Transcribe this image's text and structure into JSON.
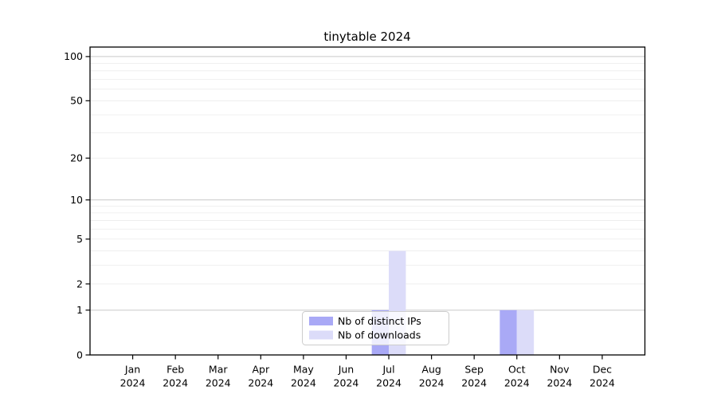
{
  "figure": {
    "background": "#ffffff"
  },
  "chart_data": {
    "type": "bar",
    "title": "tinytable 2024",
    "categories": [
      "Jan",
      "Feb",
      "Mar",
      "Apr",
      "May",
      "Jun",
      "Jul",
      "Aug",
      "Sep",
      "Oct",
      "Nov",
      "Dec"
    ],
    "category_year": "2024",
    "series": [
      {
        "name": "Nb of distinct IPs",
        "key": "distinct-ips",
        "color": "#a9a9f6",
        "values": [
          0,
          0,
          0,
          0,
          0,
          0,
          1,
          0,
          0,
          1,
          0,
          0
        ]
      },
      {
        "name": "Nb of downloads",
        "key": "downloads",
        "color": "#dcdcf9",
        "values": [
          0,
          0,
          0,
          0,
          0,
          0,
          4,
          0,
          0,
          1,
          0,
          0
        ]
      }
    ],
    "xlabel": "",
    "ylabel": "",
    "y_axis": {
      "scale": "log1p",
      "tick_labels": [
        0,
        1,
        2,
        5,
        10,
        20,
        50,
        100
      ],
      "major_gridlines": [
        1,
        10,
        100
      ],
      "minor_gridlines": [
        2,
        3,
        4,
        5,
        6,
        7,
        8,
        9,
        20,
        30,
        40,
        50,
        60,
        70,
        80,
        90
      ],
      "ylim": [
        0,
        116
      ]
    },
    "legend": {
      "position": "lower-center-inside",
      "labels": [
        "Nb of distinct IPs",
        "Nb of downloads"
      ]
    },
    "grid": true
  },
  "colors": {
    "bar_distinct_ips": "#a9a9f6",
    "bar_downloads": "#dcdcf9",
    "major_grid": "#c9c9c9",
    "minor_grid": "#ececec",
    "axis": "#000000",
    "text": "#000000",
    "legend_border": "#cccccc",
    "legend_background": "rgba(255,255,255,0.8)"
  }
}
